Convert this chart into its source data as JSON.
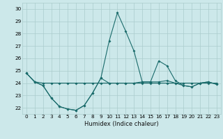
{
  "xlabel": "Humidex (Indice chaleur)",
  "ylabel": "",
  "xlim": [
    -0.5,
    23.5
  ],
  "ylim": [
    21.5,
    30.5
  ],
  "yticks": [
    22,
    23,
    24,
    25,
    26,
    27,
    28,
    29,
    30
  ],
  "xticks": [
    0,
    1,
    2,
    3,
    4,
    5,
    6,
    7,
    8,
    9,
    10,
    11,
    12,
    13,
    14,
    15,
    16,
    17,
    18,
    19,
    20,
    21,
    22,
    23
  ],
  "bg_color": "#cce8ea",
  "grid_color": "#aacccc",
  "line_color": "#1a6b6b",
  "series1": [
    24.8,
    24.1,
    24.0,
    24.0,
    24.0,
    24.0,
    24.0,
    24.0,
    24.0,
    24.0,
    24.0,
    24.0,
    24.0,
    24.0,
    24.0,
    24.0,
    24.0,
    24.0,
    24.0,
    24.0,
    24.0,
    24.0,
    24.0,
    24.0
  ],
  "series2": [
    24.8,
    24.1,
    23.8,
    22.8,
    22.1,
    21.9,
    21.8,
    22.2,
    23.2,
    24.4,
    24.0,
    24.0,
    24.0,
    24.0,
    24.1,
    24.1,
    24.1,
    24.2,
    24.0,
    23.8,
    23.7,
    24.0,
    24.1,
    23.9
  ],
  "series3": [
    24.8,
    24.1,
    23.8,
    22.8,
    22.1,
    21.9,
    21.8,
    22.2,
    23.2,
    24.4,
    27.4,
    29.7,
    28.2,
    26.6,
    24.1,
    24.1,
    25.8,
    25.4,
    24.2,
    23.8,
    23.7,
    24.0,
    24.1,
    23.9
  ],
  "marker": "D",
  "markersize": 2.0,
  "linewidth": 0.8,
  "tick_fontsize": 5.2,
  "xlabel_fontsize": 6.0
}
